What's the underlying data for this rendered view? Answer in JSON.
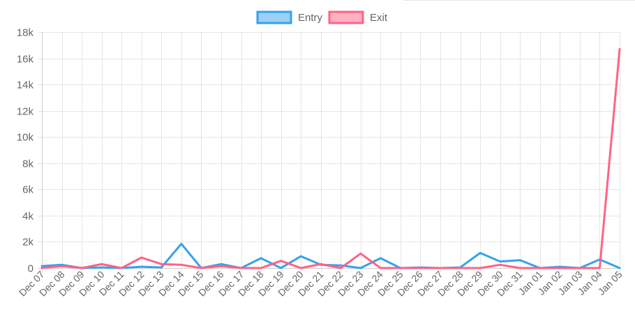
{
  "chart_data": {
    "type": "line",
    "title": "",
    "xlabel": "",
    "ylabel": "",
    "x": [
      "Dec 07",
      "Dec 08",
      "Dec 09",
      "Dec 10",
      "Dec 11",
      "Dec 12",
      "Dec 13",
      "Dec 14",
      "Dec 15",
      "Dec 16",
      "Dec 17",
      "Dec 18",
      "Dec 19",
      "Dec 20",
      "Dec 21",
      "Dec 22",
      "Dec 23",
      "Dec 24",
      "Dec 25",
      "Dec 26",
      "Dec 27",
      "Dec 28",
      "Dec 29",
      "Dec 30",
      "Dec 31",
      "Jan 01",
      "Jan 02",
      "Jan 03",
      "Jan 04",
      "Jan 05"
    ],
    "ylim": [
      0,
      18000
    ],
    "y_ticks": [
      0,
      2000,
      4000,
      6000,
      8000,
      10000,
      12000,
      14000,
      16000,
      18000
    ],
    "y_tick_labels": [
      "0",
      "2k",
      "4k",
      "6k",
      "8k",
      "10k",
      "12k",
      "14k",
      "16k",
      "18k"
    ],
    "grid": true,
    "legend_position": "top-center",
    "series": [
      {
        "name": "Entry",
        "color": "#36a2eb",
        "fill": "#9ad0f5",
        "values": [
          150,
          250,
          0,
          50,
          0,
          100,
          50,
          1850,
          0,
          300,
          0,
          750,
          0,
          900,
          250,
          200,
          0,
          750,
          0,
          50,
          0,
          50,
          1150,
          500,
          600,
          0,
          100,
          0,
          650,
          0
        ]
      },
      {
        "name": "Exit",
        "color": "#ff6384",
        "fill": "#ffb1c1",
        "values": [
          0,
          150,
          0,
          300,
          0,
          800,
          300,
          250,
          0,
          150,
          0,
          0,
          550,
          0,
          300,
          0,
          1100,
          0,
          0,
          0,
          0,
          0,
          0,
          250,
          0,
          0,
          0,
          0,
          0,
          16700
        ]
      }
    ]
  }
}
